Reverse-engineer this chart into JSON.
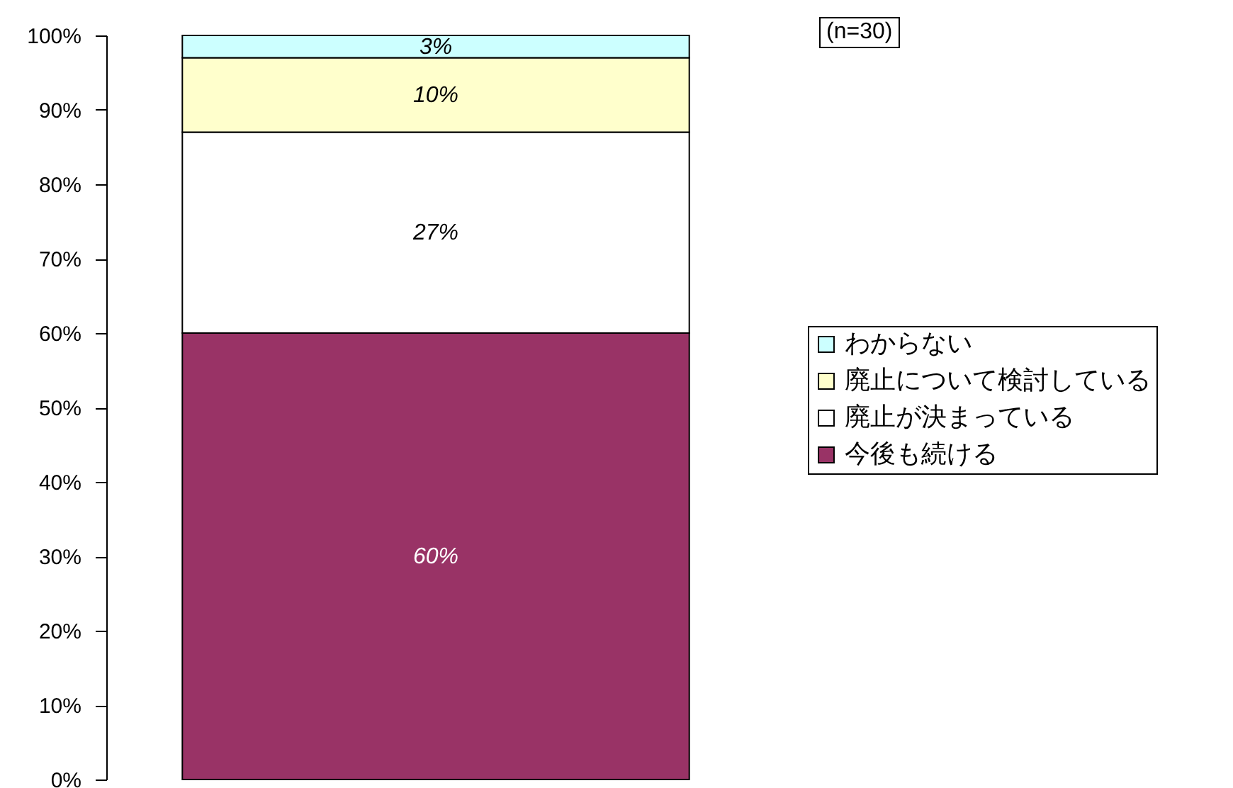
{
  "chart_data": {
    "type": "bar",
    "stacked": true,
    "categories": [
      null
    ],
    "series": [
      {
        "name": "今後も続ける",
        "color": "#993366",
        "values": [
          60
        ],
        "value_labels": [
          "60%"
        ]
      },
      {
        "name": "廃止が決まっている",
        "color": "#ffffff",
        "values": [
          27
        ],
        "value_labels": [
          "27%"
        ]
      },
      {
        "name": "廃止について検討している",
        "color": "#ffffcc",
        "values": [
          10
        ],
        "value_labels": [
          "10%"
        ]
      },
      {
        "name": "わからない",
        "color": "#ccffff",
        "values": [
          3
        ],
        "value_labels": [
          "3%"
        ]
      }
    ],
    "ylim": [
      0,
      100
    ],
    "yticks": [
      {
        "value": 0,
        "label": "0%"
      },
      {
        "value": 10,
        "label": "10%"
      },
      {
        "value": 20,
        "label": "20%"
      },
      {
        "value": 30,
        "label": "30%"
      },
      {
        "value": 40,
        "label": "40%"
      },
      {
        "value": 50,
        "label": "50%"
      },
      {
        "value": 60,
        "label": "60%"
      },
      {
        "value": 70,
        "label": "70%"
      },
      {
        "value": 80,
        "label": "80%"
      },
      {
        "value": 90,
        "label": "90%"
      },
      {
        "value": 100,
        "label": "100%"
      }
    ],
    "grid": false,
    "legend": "right",
    "annotations": [
      "(n=30)"
    ]
  }
}
